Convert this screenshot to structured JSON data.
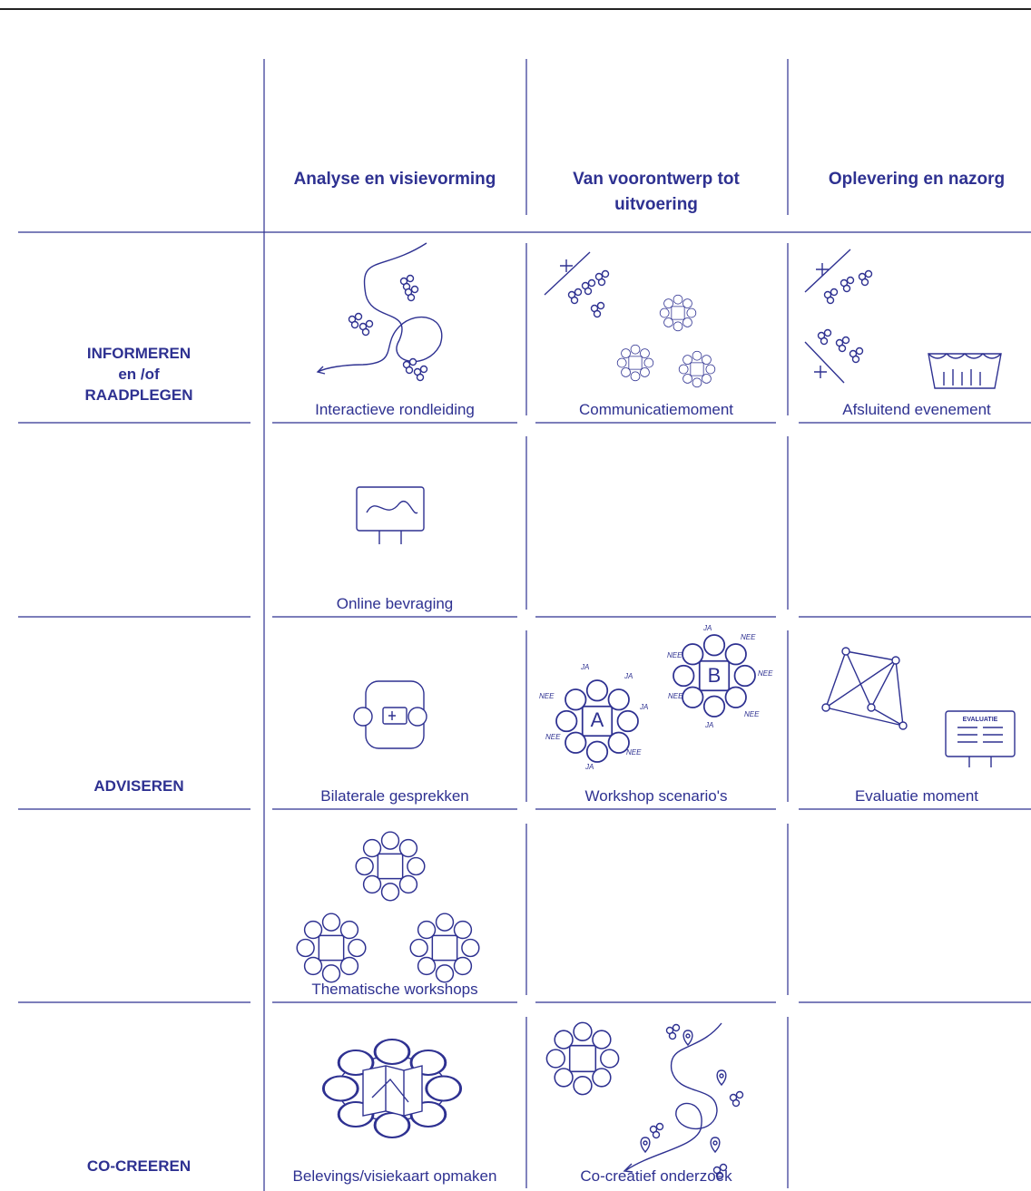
{
  "columns": [
    "Analyse en visievorming",
    "Van voorontwerp tot uitvoering",
    "Oplevering en nazorg"
  ],
  "groups": [
    {
      "label": [
        "INFORMEREN",
        "en /of",
        "RAADPLEGEN"
      ],
      "rows": [
        [
          "Interactieve rondleiding",
          "Communicatiemoment",
          "Afsluitend evenement"
        ],
        [
          "Online bevraging",
          null,
          null
        ]
      ]
    },
    {
      "label": [
        "ADVISEREN"
      ],
      "rows": [
        [
          "Bilaterale gesprekken",
          "Workshop scenario's",
          "Evaluatie moment"
        ],
        [
          "Thematische workshops",
          null,
          null
        ]
      ]
    },
    {
      "label": [
        "CO-CREEREN"
      ],
      "rows": [
        [
          "Belevings/visiekaart opmaken",
          "Co-creatief onderzoek",
          null
        ]
      ]
    }
  ],
  "illustrations": {
    "scenario_letters": [
      "A",
      "B"
    ],
    "votes": [
      "JA",
      "NEE"
    ],
    "board_label": "EVALUATIE"
  }
}
